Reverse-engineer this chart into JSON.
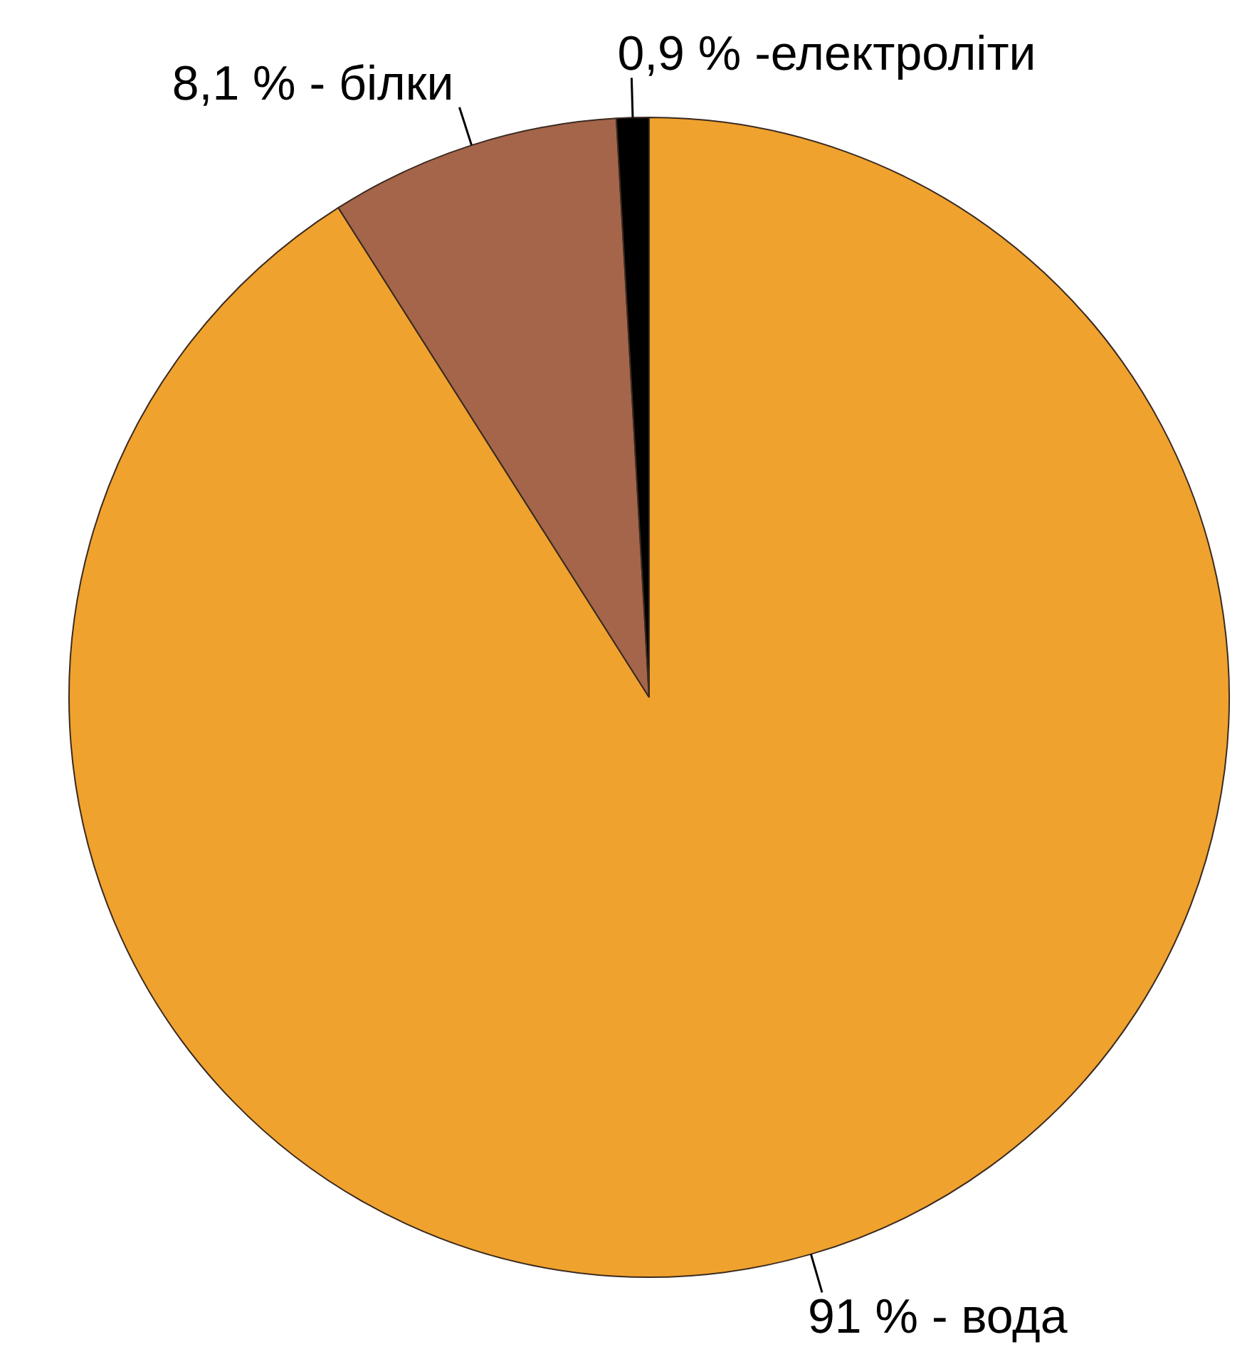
{
  "chart_data": {
    "type": "pie",
    "categories": [
      "91 % - вода",
      "8,1 % - білки",
      "0,9 % -електроліти"
    ],
    "values": [
      91,
      8.1,
      0.9
    ],
    "colors": [
      "#f0a22e",
      "#a5654a",
      "#000000"
    ],
    "legend": false
  }
}
